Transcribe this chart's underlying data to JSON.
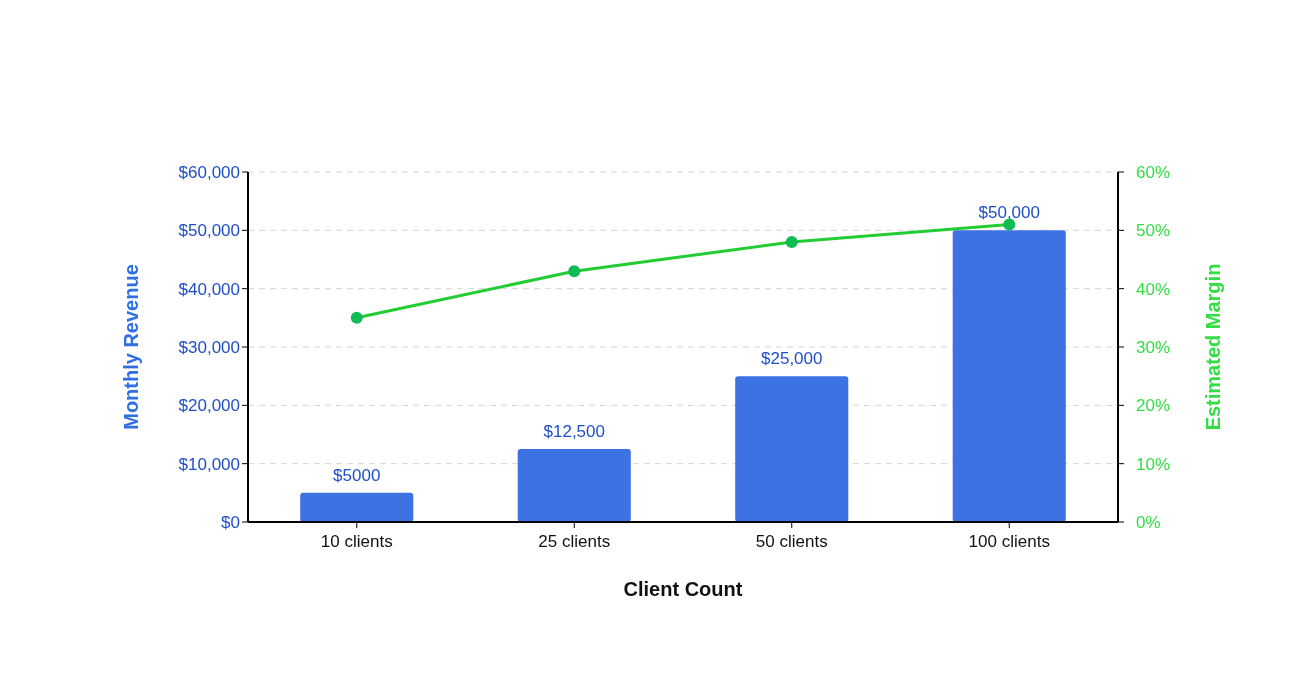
{
  "chart_data": {
    "type": "bar",
    "categories": [
      "10 clients",
      "25 clients",
      "50 clients",
      "100 clients"
    ],
    "xlabel": "Client Count",
    "ylabel": "Monthly Revenue",
    "y2label": "Estimated Margin",
    "series": [
      {
        "color": "#3d72e3",
        "values": [
          5000,
          12500,
          25000,
          50000
        ],
        "value_labels": [
          "$5000",
          "$12,500",
          "$25,000",
          "$50,000"
        ]
      },
      {
        "type": "line",
        "axis": "y2",
        "color": "#22cc33",
        "values": [
          35,
          43,
          48,
          51
        ]
      }
    ],
    "ylim": [
      0,
      60000
    ],
    "yticks": [
      {
        "value": 0,
        "label": "$0"
      },
      {
        "value": 10000,
        "label": "$10,000"
      },
      {
        "value": 20000,
        "label": "$20,000"
      },
      {
        "value": 30000,
        "label": "$30,000"
      },
      {
        "value": 40000,
        "label": "$40,000"
      },
      {
        "value": 50000,
        "label": "$50,000"
      },
      {
        "value": 60000,
        "label": "$60,000"
      }
    ],
    "y2lim": [
      0,
      60
    ],
    "y2ticks": [
      {
        "value": 0,
        "label": "0%"
      },
      {
        "value": 10,
        "label": "10%"
      },
      {
        "value": 20,
        "label": "20%"
      },
      {
        "value": 30,
        "label": "30%"
      },
      {
        "value": 40,
        "label": "40%"
      },
      {
        "value": 50,
        "label": "50%"
      },
      {
        "value": 60,
        "label": "60%"
      }
    ],
    "grid": "y",
    "marker": "circle",
    "line_style": "solid"
  }
}
